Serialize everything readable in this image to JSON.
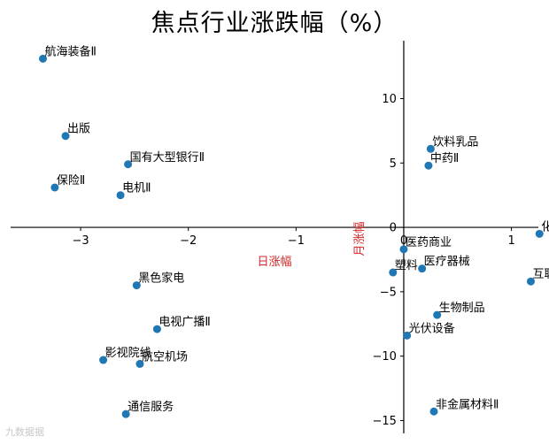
{
  "chart_data": {
    "type": "scatter",
    "title": "焦点行业涨跌幅（%）",
    "xlabel": "日涨幅",
    "ylabel": "月涨幅",
    "xlim": [
      -3.65,
      1.25
    ],
    "ylim": [
      -16,
      14.5
    ],
    "xticks": [
      -3,
      -2,
      -1,
      0,
      1
    ],
    "yticks": [
      -15,
      -10,
      -5,
      0,
      5,
      10
    ],
    "grid": false,
    "marker_color": "#1f77b4",
    "axis_label_color": "#d62728",
    "points": [
      {
        "label": "航海装备Ⅱ",
        "x": -3.35,
        "y": 13.1
      },
      {
        "label": "出版",
        "x": -3.14,
        "y": 7.1
      },
      {
        "label": "国有大型银行Ⅱ",
        "x": -2.56,
        "y": 4.9
      },
      {
        "label": "保险Ⅱ",
        "x": -3.24,
        "y": 3.1
      },
      {
        "label": "电机Ⅱ",
        "x": -2.63,
        "y": 2.5
      },
      {
        "label": "黑色家电",
        "x": -2.48,
        "y": -4.5
      },
      {
        "label": "电视广播Ⅱ",
        "x": -2.29,
        "y": -7.9
      },
      {
        "label": "影视院线",
        "x": -2.79,
        "y": -10.3
      },
      {
        "label": "航空机场",
        "x": -2.45,
        "y": -10.6
      },
      {
        "label": "通信服务",
        "x": -2.58,
        "y": -14.5
      },
      {
        "label": "饮料乳品",
        "x": 0.25,
        "y": 6.1
      },
      {
        "label": "中药Ⅱ",
        "x": 0.23,
        "y": 4.8
      },
      {
        "label": "化学制药",
        "x": 1.26,
        "y": -0.5
      },
      {
        "label": "医药商业",
        "x": 0.0,
        "y": -1.7
      },
      {
        "label": "医疗器械",
        "x": 0.17,
        "y": -3.2
      },
      {
        "label": "塑料",
        "x": -0.1,
        "y": -3.5
      },
      {
        "label": "互联网电商",
        "x": 1.18,
        "y": -4.2
      },
      {
        "label": "生物制品",
        "x": 0.31,
        "y": -6.8
      },
      {
        "label": "光伏设备",
        "x": 0.03,
        "y": -8.4
      },
      {
        "label": "非金属材料Ⅱ",
        "x": 0.28,
        "y": -14.3
      }
    ]
  },
  "watermark": "九数据据"
}
